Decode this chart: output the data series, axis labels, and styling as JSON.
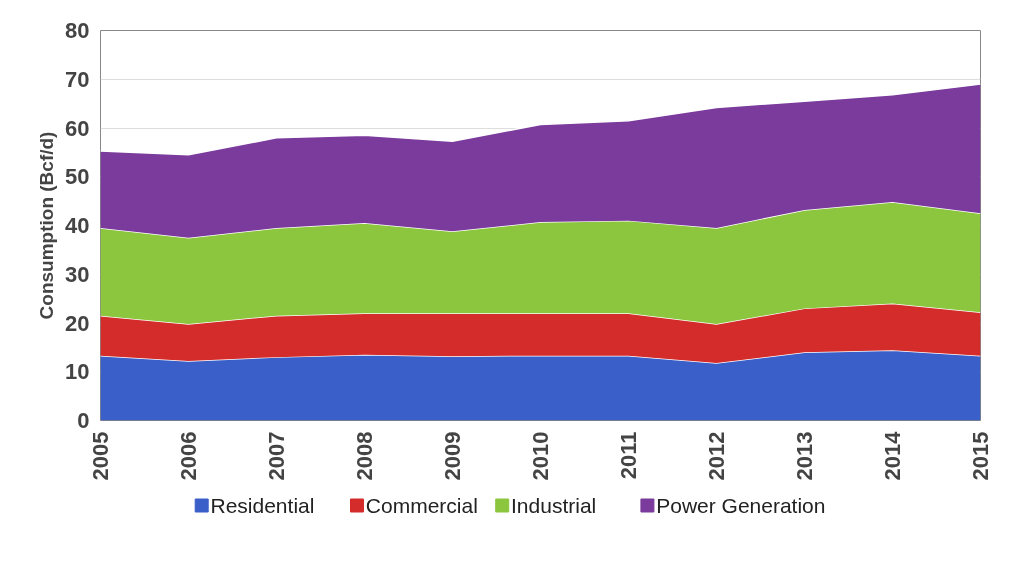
{
  "chart_data": {
    "type": "area",
    "stacked": true,
    "ylabel": "Consumption (Bcf/d)",
    "x": [
      2005,
      2006,
      2007,
      2008,
      2009,
      2010,
      2011,
      2012,
      2013,
      2014,
      2015
    ],
    "series": [
      {
        "name": "Residential",
        "color": "#3a5fc8",
        "values": [
          13.3,
          12.2,
          13,
          13.5,
          13.2,
          13.3,
          13.3,
          11.8,
          14,
          14.4,
          13.3
        ]
      },
      {
        "name": "Commercial",
        "color": "#d42b2b",
        "values": [
          8.2,
          7.6,
          8.5,
          8.5,
          8.8,
          8.7,
          8.7,
          8,
          9,
          9.6,
          8.9
        ]
      },
      {
        "name": "Industrial",
        "color": "#8cc63e",
        "values": [
          18,
          17.7,
          18,
          18.5,
          16.8,
          18.7,
          19,
          19.7,
          20.2,
          20.8,
          20.3
        ]
      },
      {
        "name": "Power Generation",
        "color": "#7a3b9c",
        "values": [
          15.8,
          17,
          18.5,
          18,
          18.5,
          20,
          20.5,
          24.7,
          22.3,
          22,
          26.5
        ]
      }
    ],
    "xlim": [
      2005,
      2015
    ],
    "xticks": [
      2005,
      2006,
      2007,
      2008,
      2009,
      2010,
      2011,
      2012,
      2013,
      2014,
      2015
    ],
    "ylim": [
      0,
      80
    ],
    "yticks": [
      0,
      10,
      20,
      30,
      40,
      50,
      60,
      70,
      80
    ],
    "grid": "y",
    "legend": "bottom"
  }
}
